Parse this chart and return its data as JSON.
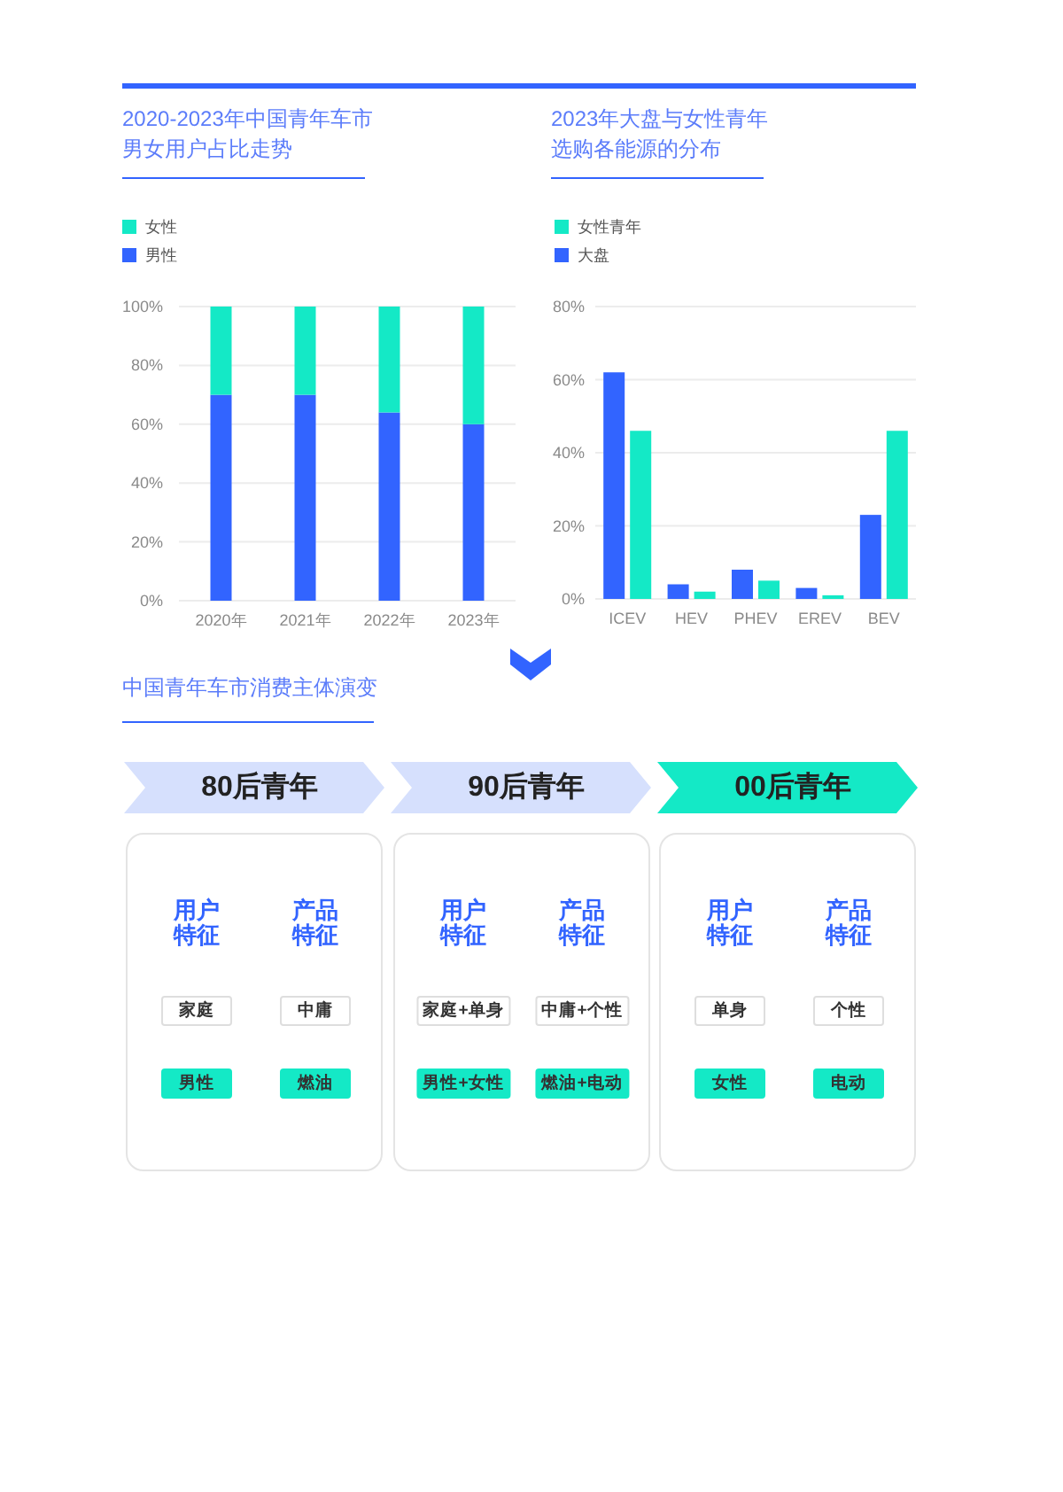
{
  "chart_data": [
    {
      "type": "bar",
      "title": "2020-2023年中国青年车市男女用户占比走势",
      "categories": [
        "2020年",
        "2021年",
        "2022年",
        "2023年"
      ],
      "stacked": true,
      "series": [
        {
          "name": "男性",
          "color": "#3264ff",
          "values": [
            70,
            70,
            64,
            60
          ]
        },
        {
          "name": "女性",
          "color": "#14e9c6",
          "values": [
            30,
            30,
            36,
            40
          ]
        }
      ],
      "ylim": [
        0,
        100
      ],
      "yticks": [
        {
          "value": 0,
          "label": "0%"
        },
        {
          "value": 20,
          "label": "20%"
        },
        {
          "value": 40,
          "label": "40%"
        },
        {
          "value": 60,
          "label": "60%"
        },
        {
          "value": 80,
          "label": "80%"
        },
        {
          "value": 100,
          "label": "100%"
        }
      ],
      "grid": "y",
      "legend": "top left"
    },
    {
      "type": "bar",
      "title": "2023年大盘与女性青年选购各能源的分布",
      "categories": [
        "ICEV",
        "HEV",
        "PHEV",
        "EREV",
        "BEV"
      ],
      "series": [
        {
          "name": "大盘",
          "color": "#3264ff",
          "values": [
            62,
            4,
            8,
            3,
            23
          ]
        },
        {
          "name": "女性青年",
          "color": "#14e9c6",
          "values": [
            46,
            2,
            5,
            1,
            46
          ]
        }
      ],
      "ylim": [
        0,
        80
      ],
      "yticks": [
        {
          "value": 0,
          "label": "0%"
        },
        {
          "value": 20,
          "label": "20%"
        },
        {
          "value": 40,
          "label": "40%"
        },
        {
          "value": 60,
          "label": "60%"
        },
        {
          "value": 80,
          "label": "80%"
        }
      ],
      "grid": "y",
      "legend": "top left"
    },
    {
      "type": "other",
      "title": "中国青年车市消费主体演变",
      "categories": [
        "80后青年",
        "90后青年",
        "00后青年"
      ],
      "colors": [
        "#d6e0fd",
        "#d6e0fd",
        "#14e9c6"
      ],
      "annotations": [
        "用户特征",
        "产品特征",
        "家庭",
        "中庸",
        "男性",
        "燃油",
        "用户特征",
        "产品特征",
        "家庭+单身",
        "中庸+个性",
        "男性+女性",
        "燃油+电动",
        "用户特征",
        "产品特征",
        "单身",
        "个性",
        "女性",
        "电动"
      ]
    }
  ]
}
